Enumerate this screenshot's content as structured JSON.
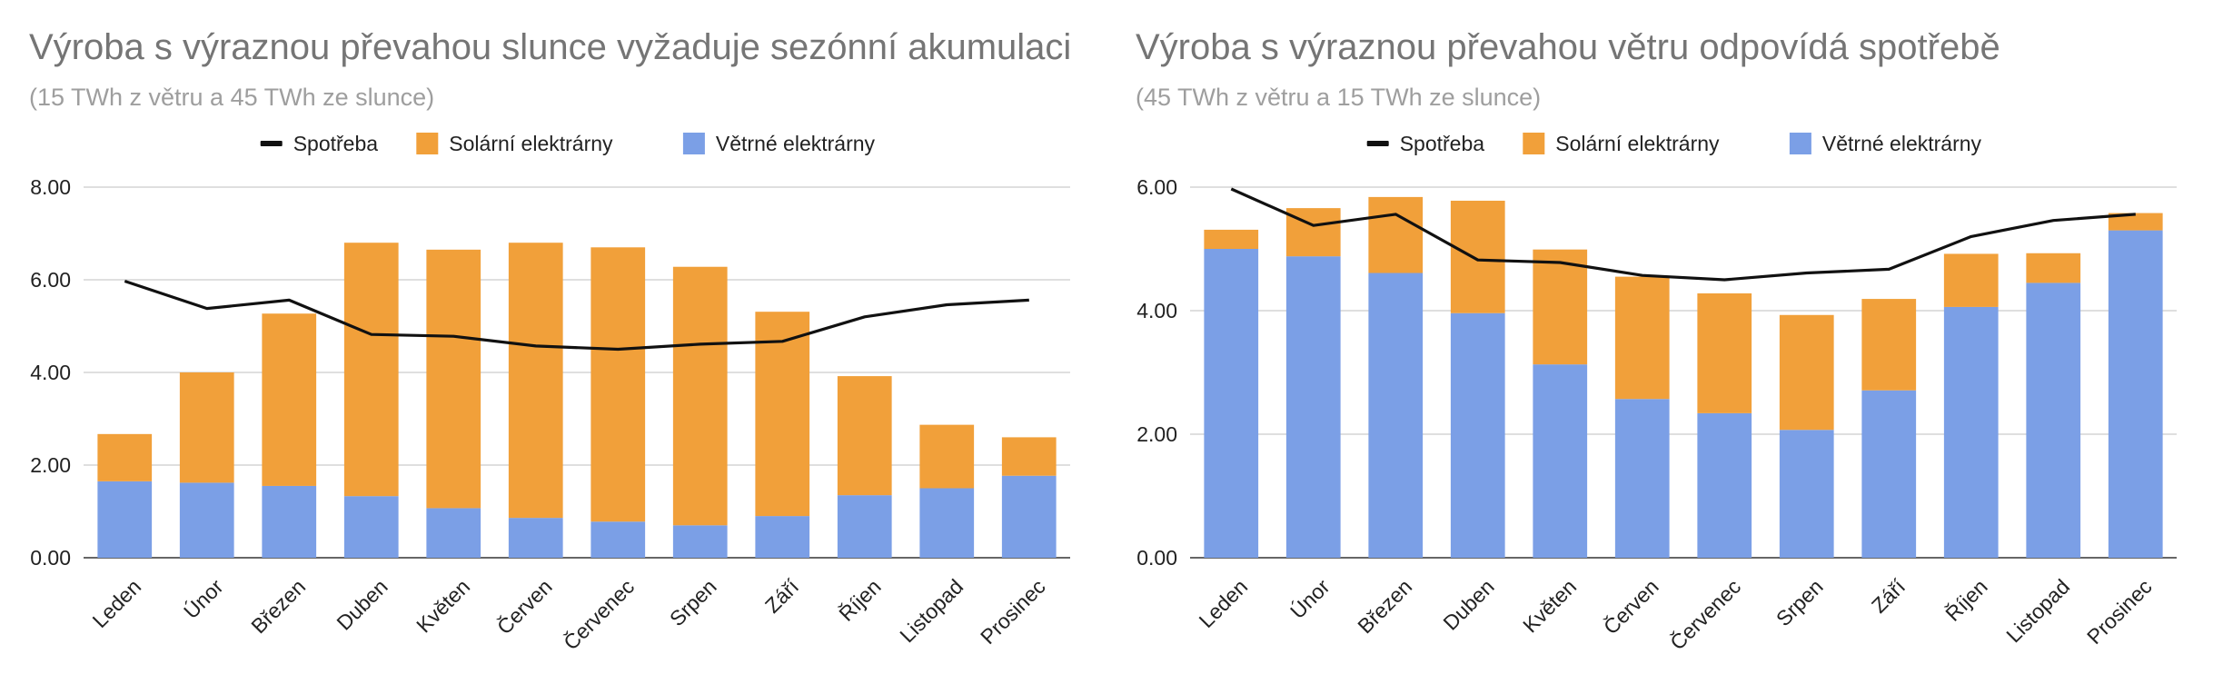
{
  "chart_data": [
    {
      "type": "bar",
      "stacked": true,
      "title": "Výroba s výraznou převahou slunce vyžaduje sezónní akumulaci",
      "subtitle": "(15 TWh z větru a 45 TWh ze slunce)",
      "categories": [
        "Leden",
        "Únor",
        "Březen",
        "Duben",
        "Květen",
        "Červen",
        "Červenec",
        "Srpen",
        "Září",
        "Říjen",
        "Listopad",
        "Prosinec"
      ],
      "series": [
        {
          "name": "Větrné elektrárny",
          "color": "#7b9fe6",
          "values": [
            1.65,
            1.62,
            1.55,
            1.33,
            1.07,
            0.86,
            0.78,
            0.7,
            0.9,
            1.35,
            1.5,
            1.77
          ]
        },
        {
          "name": "Solární elektrárny",
          "color": "#f1a03a",
          "values": [
            1.02,
            2.38,
            3.72,
            5.47,
            5.58,
            5.94,
            5.92,
            5.58,
            4.41,
            2.57,
            1.37,
            0.83
          ]
        },
        {
          "name": "Spotřeba",
          "type": "line",
          "color": "#111111",
          "values": [
            5.97,
            5.38,
            5.56,
            4.82,
            4.78,
            4.57,
            4.5,
            4.61,
            4.67,
            5.2,
            5.46,
            5.56
          ]
        }
      ],
      "ylim": [
        0,
        8
      ],
      "yticks": [
        "0.00",
        "2.00",
        "4.00",
        "6.00",
        "8.00"
      ],
      "grid": true,
      "legend_position": "top",
      "legend": [
        "Spotřeba",
        "Solární elektrárny",
        "Větrné elektrárny"
      ]
    },
    {
      "type": "bar",
      "stacked": true,
      "title": "Výroba s výraznou převahou větru odpovídá spotřebě",
      "subtitle": "(45 TWh z větru a 15 TWh ze slunce)",
      "categories": [
        "Leden",
        "Únor",
        "Březen",
        "Duben",
        "Květen",
        "Červen",
        "Červenec",
        "Srpen",
        "Září",
        "Říjen",
        "Listopad",
        "Prosinec"
      ],
      "series": [
        {
          "name": "Větrné elektrárny",
          "color": "#7b9fe6",
          "values": [
            5.0,
            4.88,
            4.61,
            3.96,
            3.13,
            2.57,
            2.34,
            2.07,
            2.71,
            4.06,
            4.45,
            5.3
          ]
        },
        {
          "name": "Solární elektrárny",
          "color": "#f1a03a",
          "values": [
            0.31,
            0.78,
            1.23,
            1.82,
            1.86,
            1.98,
            1.94,
            1.86,
            1.48,
            0.86,
            0.48,
            0.28
          ]
        },
        {
          "name": "Spotřeba",
          "type": "line",
          "color": "#111111",
          "values": [
            5.97,
            5.38,
            5.56,
            4.82,
            4.78,
            4.57,
            4.5,
            4.61,
            4.67,
            5.2,
            5.46,
            5.56
          ]
        }
      ],
      "ylim": [
        0,
        6
      ],
      "yticks": [
        "0.00",
        "2.00",
        "4.00",
        "6.00"
      ],
      "grid": true,
      "legend_position": "top",
      "legend": [
        "Spotřeba",
        "Solární elektrárny",
        "Větrné elektrárny"
      ]
    }
  ]
}
